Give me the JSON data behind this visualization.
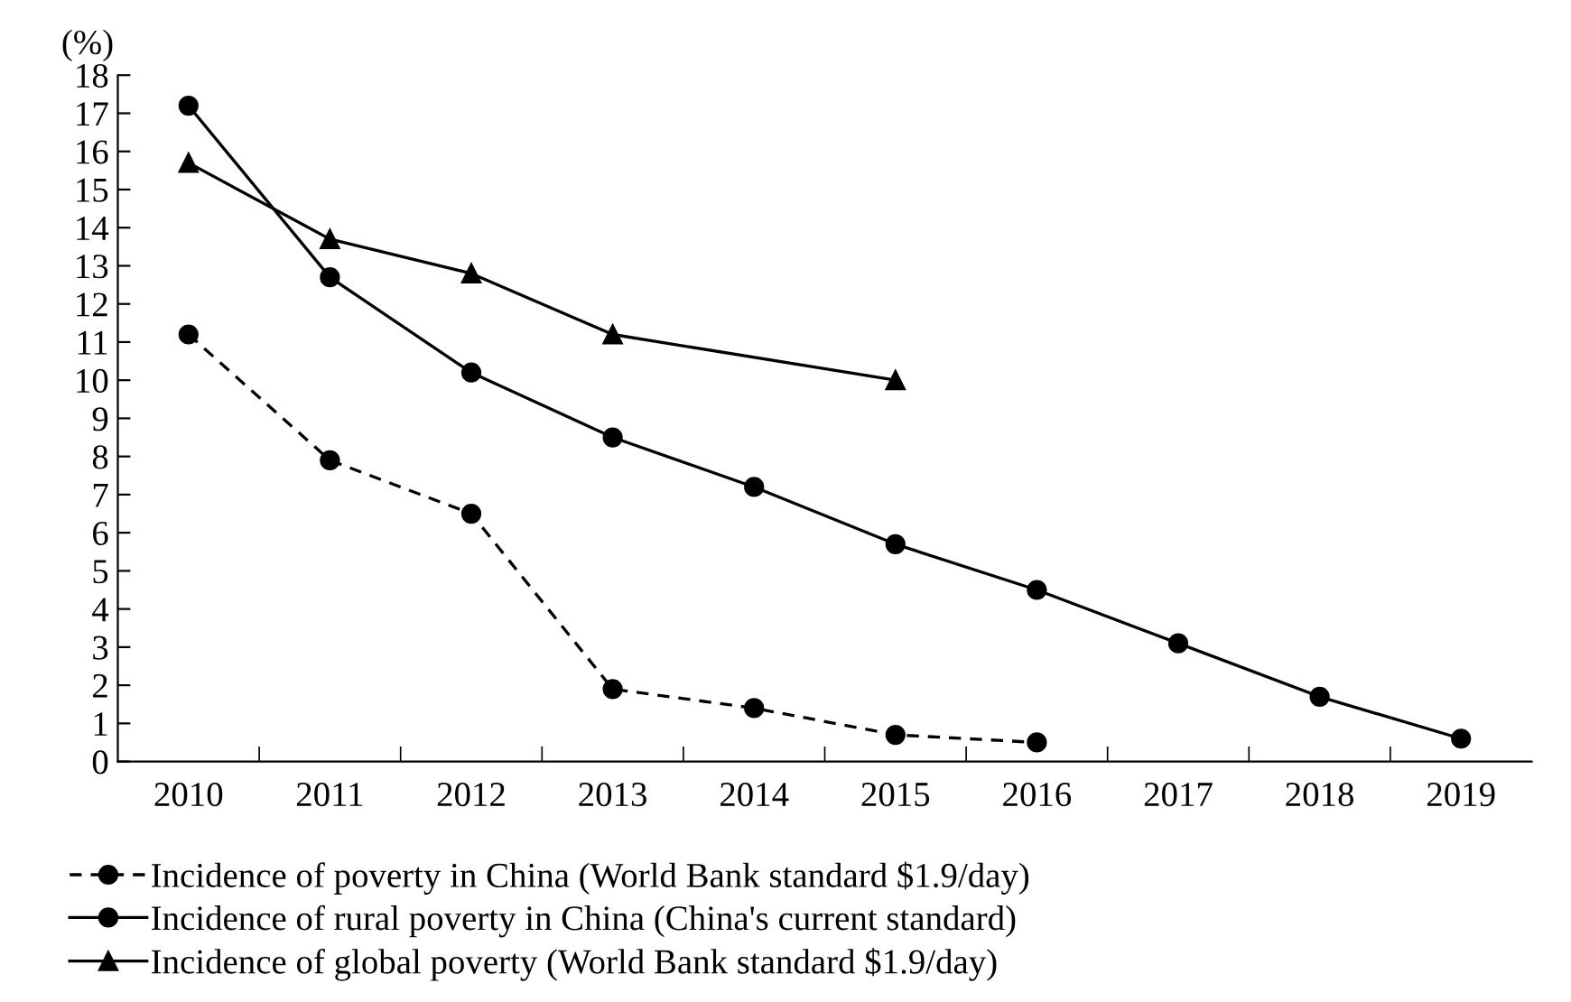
{
  "chart_data": {
    "type": "line",
    "ylabel": "(%)",
    "categories": [
      "2010",
      "2011",
      "2012",
      "2013",
      "2014",
      "2015",
      "2016",
      "2017",
      "2018",
      "2019"
    ],
    "series": [
      {
        "name": "Incidence of poverty in China (World Bank standard $1.9/day)",
        "color": "#000000",
        "line_style": "dashed",
        "marker": "circle",
        "values": [
          11.2,
          7.9,
          6.5,
          1.9,
          1.4,
          0.7,
          0.5,
          null,
          null,
          null
        ]
      },
      {
        "name": "Incidence of rural poverty in China (China's current standard)",
        "color": "#000000",
        "line_style": "solid",
        "marker": "circle",
        "values": [
          17.2,
          12.7,
          10.2,
          8.5,
          7.2,
          5.7,
          4.5,
          3.1,
          1.7,
          0.6
        ]
      },
      {
        "name": "Incidence of global poverty (World Bank standard $1.9/day)",
        "color": "#000000",
        "line_style": "solid",
        "marker": "triangle",
        "values": [
          15.7,
          13.7,
          12.8,
          11.2,
          null,
          10.0,
          null,
          null,
          null,
          null
        ]
      }
    ],
    "ylim": [
      0,
      18
    ],
    "yticks": [
      0,
      1,
      2,
      3,
      4,
      5,
      6,
      7,
      8,
      9,
      10,
      11,
      12,
      13,
      14,
      15,
      16,
      17,
      18
    ],
    "grid": false,
    "legend": "bottom"
  }
}
